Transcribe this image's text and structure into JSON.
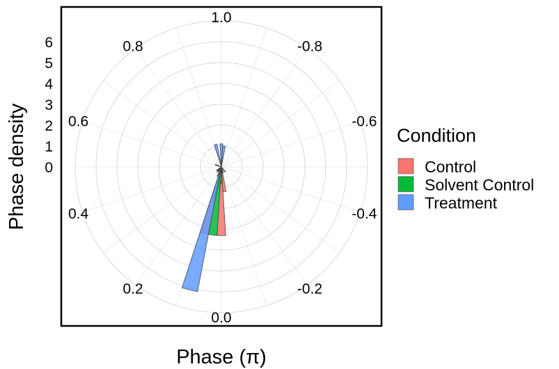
{
  "chart_data": {
    "type": "bar",
    "subtype": "polar-histogram",
    "title": "",
    "xlabel": "Phase (π)",
    "ylabel": "Phase density",
    "radial_ticks": [
      "0",
      "1",
      "2",
      "3",
      "4",
      "5",
      "6"
    ],
    "radial_range": [
      0,
      7
    ],
    "angle_ticks": [
      "1.0",
      "-0.8",
      "-0.6",
      "-0.4",
      "-0.2",
      "0.0",
      "0.2",
      "0.4",
      "0.6",
      "0.8"
    ],
    "angle_tick_values": [
      1.0,
      -0.8,
      -0.6,
      -0.4,
      -0.2,
      0.0,
      0.2,
      0.4,
      0.6,
      0.8
    ],
    "bin_width": 0.04,
    "grid": true,
    "legend": {
      "title": "Condition",
      "position": "right",
      "entries": [
        {
          "label": "Control",
          "color": "#F8766D"
        },
        {
          "label": "Solvent Control",
          "color": "#00BA38"
        },
        {
          "label": "Treatment",
          "color": "#619CFF"
        }
      ]
    },
    "series": [
      {
        "name": "Control",
        "color": "#F8766D",
        "bins": [
          {
            "phase": 0.0,
            "density": 3.3
          },
          {
            "phase": 0.08,
            "density": 3.3
          },
          {
            "phase": 0.04,
            "density": 1.0
          },
          {
            "phase": -0.04,
            "density": 1.2
          },
          {
            "phase": 0.12,
            "density": 0.5
          },
          {
            "phase": 0.2,
            "density": 0.3
          }
        ]
      },
      {
        "name": "Solvent Control",
        "color": "#00BA38",
        "bins": [
          {
            "phase": 0.04,
            "density": 3.3
          },
          {
            "phase": 0.08,
            "density": 1.5
          },
          {
            "phase": 0.0,
            "density": 0.8
          },
          {
            "phase": -0.08,
            "density": 0.3
          },
          {
            "phase": 0.6,
            "density": 0.3
          },
          {
            "phase": 0.28,
            "density": 0.3
          }
        ]
      },
      {
        "name": "Treatment",
        "color": "#619CFF",
        "bins": [
          {
            "phase": 0.08,
            "density": 6.1
          },
          {
            "phase": 0.92,
            "density": 1.1
          },
          {
            "phase": 1.0,
            "density": 1.1
          },
          {
            "phase": -0.96,
            "density": 1.0
          },
          {
            "phase": 0.0,
            "density": 0.5
          },
          {
            "phase": 0.6,
            "density": 0.3
          },
          {
            "phase": -0.2,
            "density": 0.3
          }
        ]
      }
    ]
  }
}
